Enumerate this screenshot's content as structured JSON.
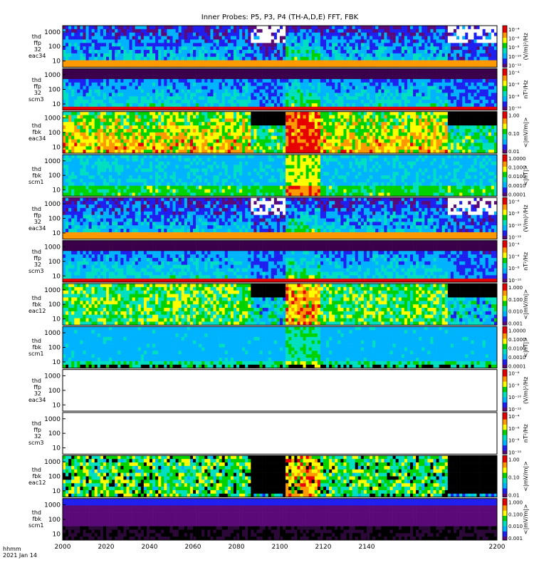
{
  "title": "Inner Probes: P5, P3, P4 (TH-A,D,E) FFT, FBK",
  "footer": {
    "time_label": "hhmm",
    "date_label": "2021 Jan 14"
  },
  "x_ticks": [
    "2000",
    "2020",
    "2040",
    "2060",
    "2080",
    "2100",
    "2120",
    "2140",
    "2200"
  ],
  "colors": {
    "colormap": [
      "#5a0a78",
      "#1f1ff0",
      "#00b3ff",
      "#00e0c0",
      "#00d200",
      "#ffff00",
      "#ff9900",
      "#e60000"
    ]
  },
  "panels": [
    {
      "label": [
        "thd",
        "ffp",
        "32",
        "eac34"
      ],
      "y_ticks": [
        "1000",
        "100",
        "10"
      ],
      "unit": "(V/m)²/Hz",
      "cbar_ticks": [
        "10⁻⁴",
        "10⁻⁶",
        "10⁻⁸",
        "10⁻¹⁰",
        "10⁻¹²"
      ],
      "pattern": "ffp_e"
    },
    {
      "label": [
        "thd",
        "ffp",
        "32",
        "scm3"
      ],
      "y_ticks": [
        "1000",
        "100",
        "10"
      ],
      "unit": "nT²/Hz",
      "cbar_ticks": [
        "10⁻⁴",
        "10⁻⁶",
        "10⁻⁸",
        "10⁻¹⁰"
      ],
      "pattern": "ffp_b"
    },
    {
      "label": [
        "thd",
        "fbk",
        "eac34"
      ],
      "y_ticks": [
        "1000",
        "100",
        "10"
      ],
      "unit": "<|mV/m|>",
      "cbar_ticks": [
        "1.00",
        "0.10",
        "0.01"
      ],
      "pattern": "fbk_e_hot"
    },
    {
      "label": [
        "thd",
        "fbk",
        "scm1"
      ],
      "y_ticks": [
        "1000",
        "100",
        "10"
      ],
      "unit": "<|nT|>",
      "cbar_ticks": [
        "1.0000",
        "0.1000",
        "0.0100",
        "0.0010",
        "0.0001"
      ],
      "pattern": "fbk_b"
    },
    {
      "label": [
        "thd",
        "ffp",
        "32",
        "eac34"
      ],
      "y_ticks": [
        "1000",
        "100",
        "10"
      ],
      "unit": "(V/m)²/Hz",
      "cbar_ticks": [
        "10⁻⁶",
        "10⁻⁸",
        "10⁻¹⁰",
        "10⁻¹²"
      ],
      "pattern": "ffp_e"
    },
    {
      "label": [
        "thd",
        "ffp",
        "32",
        "scm3"
      ],
      "y_ticks": [
        "1000",
        "100",
        "10"
      ],
      "unit": "nT²/Hz",
      "cbar_ticks": [
        "10⁻⁴",
        "10⁻⁶",
        "10⁻⁸",
        "10⁻¹⁰"
      ],
      "pattern": "ffp_b"
    },
    {
      "label": [
        "thd",
        "fbk",
        "eac12"
      ],
      "y_ticks": [
        "1000",
        "100",
        "10"
      ],
      "unit": "<|mV/m|>",
      "cbar_ticks": [
        "1.000",
        "0.100",
        "0.010",
        "0.001"
      ],
      "pattern": "fbk_e_mid"
    },
    {
      "label": [
        "thd",
        "fbk",
        "scm1"
      ],
      "y_ticks": [
        "1000",
        "100",
        "10"
      ],
      "unit": "<|nT|>",
      "cbar_ticks": [
        "1.0000",
        "0.1000",
        "0.0100",
        "0.0010",
        "0.0001"
      ],
      "pattern": "fbk_b2"
    },
    {
      "label": [
        "thd",
        "ffp",
        "32",
        "eac34"
      ],
      "y_ticks": [
        "1000",
        "100",
        "10"
      ],
      "unit": "(V/m)²/Hz",
      "cbar_ticks": [
        "10⁻⁶",
        "10⁻⁸",
        "10⁻¹⁰",
        "10⁻¹²"
      ],
      "pattern": "empty"
    },
    {
      "label": [
        "thd",
        "ffp",
        "32",
        "scm3"
      ],
      "y_ticks": [
        "1000",
        "100",
        "10"
      ],
      "unit": "nT²/Hz",
      "cbar_ticks": [
        "10⁻⁴",
        "10⁻⁶",
        "10⁻⁸",
        "10⁻¹⁰"
      ],
      "pattern": "empty"
    },
    {
      "label": [
        "thd",
        "fbk",
        "eac12"
      ],
      "y_ticks": [
        "1000",
        "100",
        "10"
      ],
      "unit": "<|mV/m|>",
      "cbar_ticks": [
        "1.00",
        "0.10",
        "0.01"
      ],
      "pattern": "fbk_e_dark"
    },
    {
      "label": [
        "thd",
        "fbk",
        "scm1"
      ],
      "y_ticks": [
        "1000",
        "100",
        "10"
      ],
      "unit": "<|mV/m|>",
      "cbar_ticks": [
        "1.000",
        "0.100",
        "0.010",
        "0.001"
      ],
      "pattern": "fbk_purple"
    }
  ],
  "chart_data": {
    "type": "heatmap",
    "title": "Inner Probes: P5, P3, P4 (TH-A,D,E) FFT, FBK",
    "x_axis": {
      "label": "hhmm",
      "date": "2021 Jan 14",
      "ticks": [
        "2000",
        "2020",
        "2040",
        "2060",
        "2080",
        "2100",
        "2120",
        "2140",
        "2200"
      ]
    },
    "y_axis": {
      "scale": "log",
      "ticks": [
        1000,
        100,
        10
      ]
    },
    "panels": [
      {
        "name": "thd ffp 32 eac34",
        "units": "(V/m)²/Hz"
      },
      {
        "name": "thd ffp 32 scm3",
        "units": "nT²/Hz"
      },
      {
        "name": "thd fbk eac34",
        "units": "<|mV/m|>"
      },
      {
        "name": "thd fbk scm1",
        "units": "<|nT|>"
      },
      {
        "name": "thd ffp 32 eac34",
        "units": "(V/m)²/Hz"
      },
      {
        "name": "thd ffp 32 scm3",
        "units": "nT²/Hz"
      },
      {
        "name": "thd fbk eac12",
        "units": "<|mV/m|>"
      },
      {
        "name": "thd fbk scm1",
        "units": "<|nT|>"
      },
      {
        "name": "thd ffp 32 eac34",
        "units": "(V/m)²/Hz",
        "empty": true
      },
      {
        "name": "thd ffp 32 scm3",
        "units": "nT²/Hz",
        "empty": true
      },
      {
        "name": "thd fbk eac12",
        "units": "<|mV/m|>"
      },
      {
        "name": "thd fbk scm1",
        "units": "<|mV/m|>"
      }
    ]
  }
}
